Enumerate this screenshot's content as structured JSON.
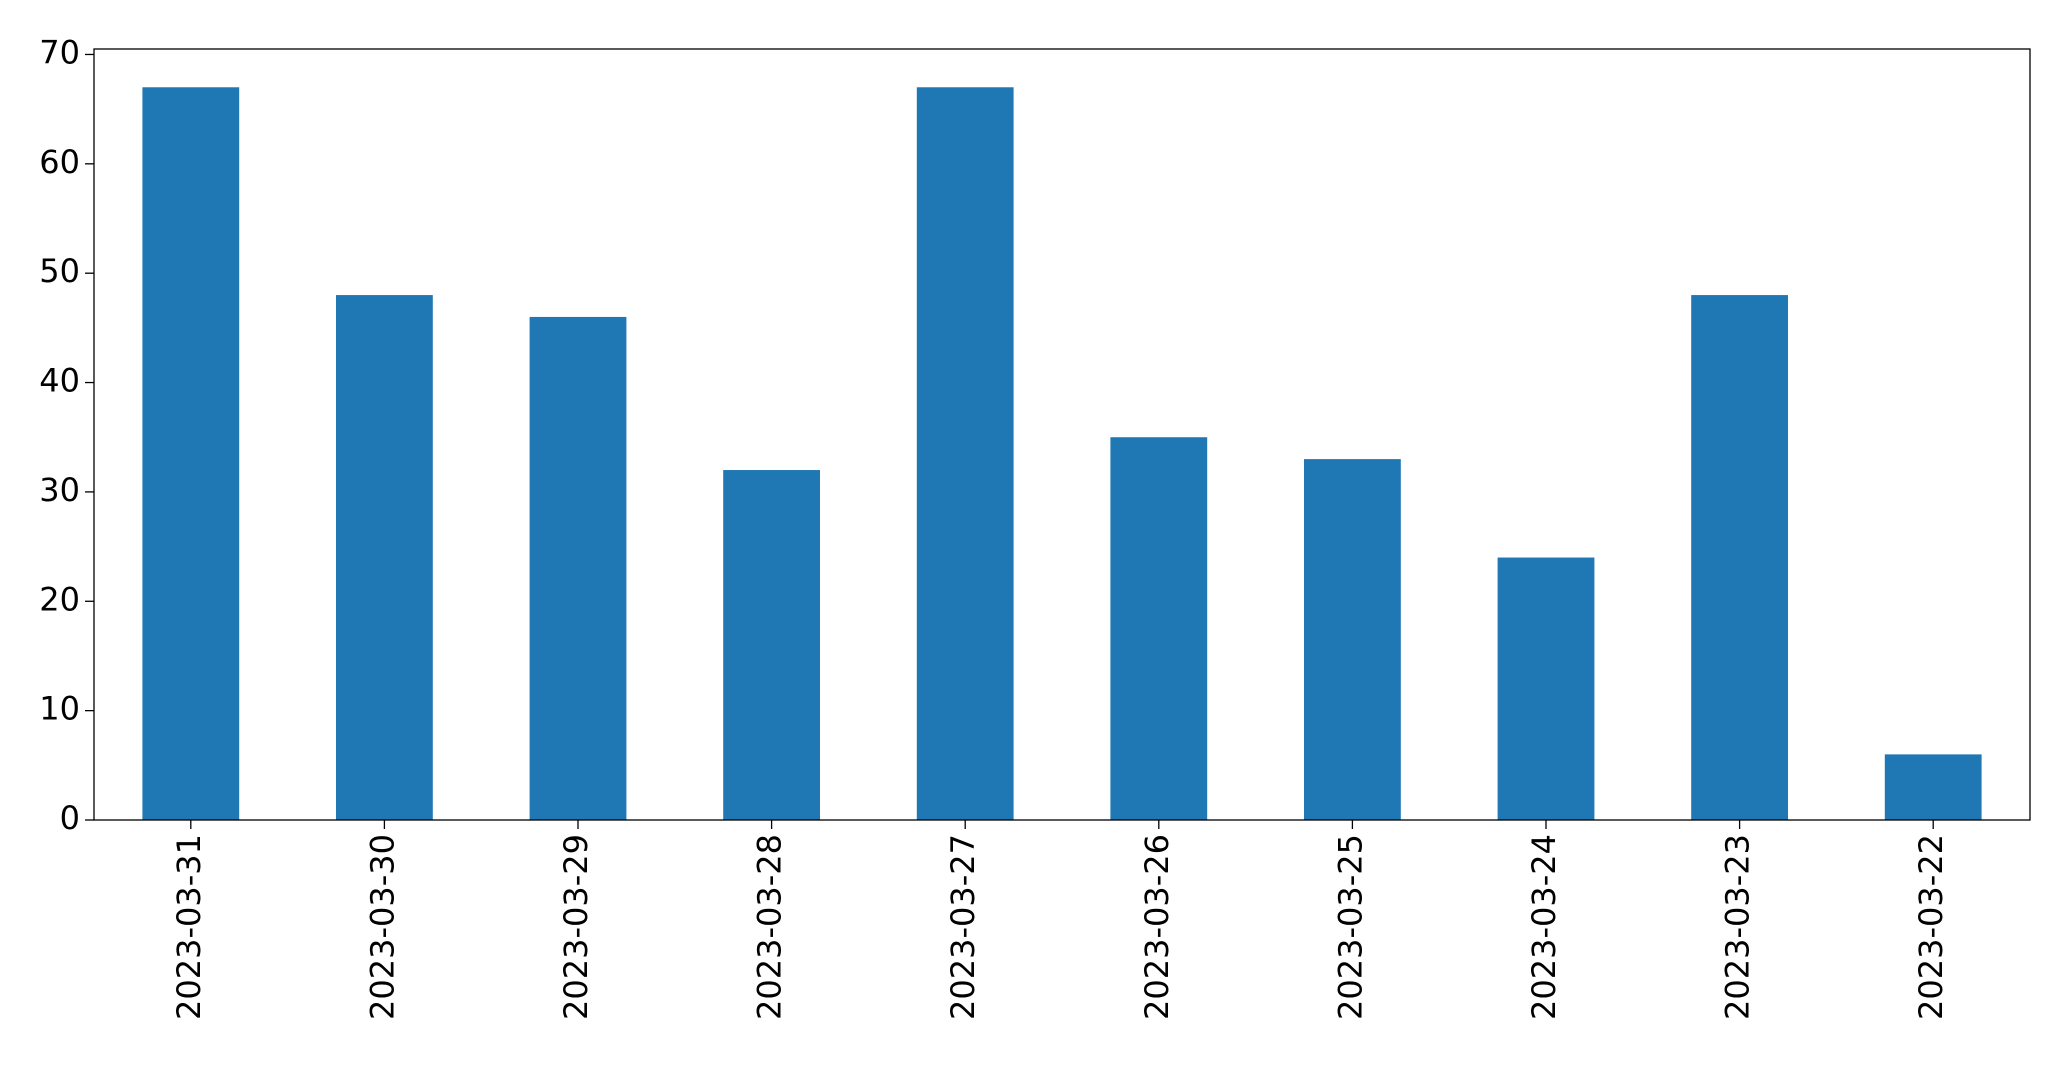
{
  "chart_data": {
    "type": "bar",
    "categories": [
      "2023-03-31",
      "2023-03-30",
      "2023-03-29",
      "2023-03-28",
      "2023-03-27",
      "2023-03-26",
      "2023-03-25",
      "2023-03-24",
      "2023-03-23",
      "2023-03-22"
    ],
    "values": [
      67,
      48,
      46,
      32,
      67,
      35,
      33,
      24,
      48,
      6
    ],
    "color": "#1f77b4",
    "ylim": [
      0,
      70.5
    ],
    "yticks": [
      0,
      10,
      20,
      30,
      40,
      50,
      60,
      70
    ],
    "grid": false
  }
}
